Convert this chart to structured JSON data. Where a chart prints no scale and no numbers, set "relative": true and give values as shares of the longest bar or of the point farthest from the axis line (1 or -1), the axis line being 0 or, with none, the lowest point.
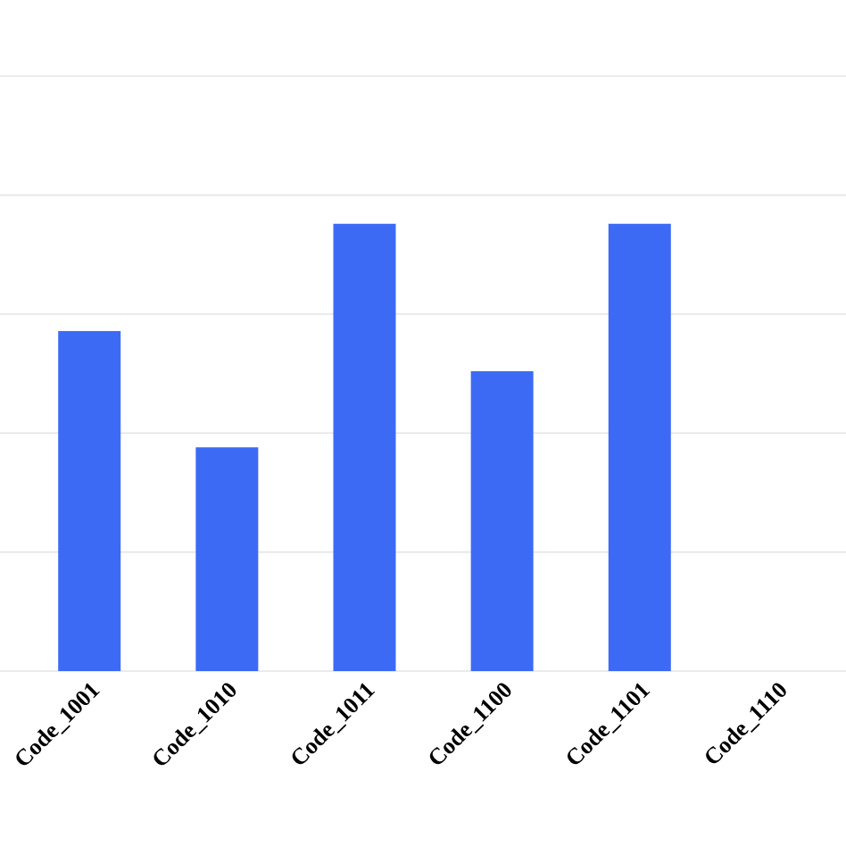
{
  "chart_data": {
    "type": "bar",
    "relative": true,
    "grid": "y",
    "color": "#3d6af5",
    "categories": [
      "Code_1001",
      "Code_1010",
      "Code_1011",
      "Code_1100",
      "Code_1101",
      "Code_1110"
    ],
    "values": [
      0.76,
      0.5,
      1.0,
      0.67,
      1.0,
      null
    ]
  }
}
